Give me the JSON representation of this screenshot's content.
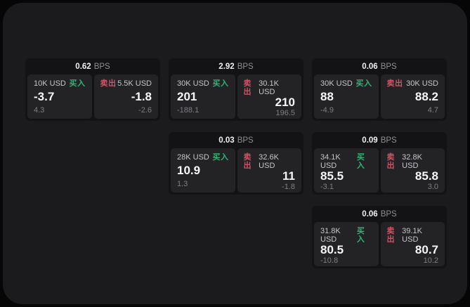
{
  "labels": {
    "bps_suffix": "BPS",
    "buy": "买入",
    "sell": "卖出"
  },
  "colors": {
    "buy_accent": "#30b375",
    "sell_accent": "#d05364",
    "panel_background": "#1b1b1d",
    "card_background": "#131315",
    "tile_background": "#232326"
  },
  "cards": [
    {
      "bps": "0.62",
      "buy": {
        "amount": "10K USD",
        "value": "-3.7",
        "sub": "4.3"
      },
      "sell": {
        "amount": "5.5K USD",
        "value": "-1.8",
        "sub": "-2.6"
      }
    },
    {
      "bps": "2.92",
      "buy": {
        "amount": "30K USD",
        "value": "201",
        "sub": "-188.1"
      },
      "sell": {
        "amount": "30.1K USD",
        "value": "210",
        "sub": "196.5"
      }
    },
    {
      "bps": "0.06",
      "buy": {
        "amount": "30K USD",
        "value": "88",
        "sub": "-4.9"
      },
      "sell": {
        "amount": "30K USD",
        "value": "88.2",
        "sub": "4.7"
      }
    },
    {
      "bps": "0.03",
      "buy": {
        "amount": "28K USD",
        "value": "10.9",
        "sub": "1.3"
      },
      "sell": {
        "amount": "32.6K USD",
        "value": "11",
        "sub": "-1.8"
      }
    },
    {
      "bps": "0.09",
      "buy": {
        "amount": "34.1K USD",
        "value": "85.5",
        "sub": "-3.1"
      },
      "sell": {
        "amount": "32.8K USD",
        "value": "85.8",
        "sub": "3.0"
      }
    },
    {
      "bps": "0.06",
      "buy": {
        "amount": "31.8K USD",
        "value": "80.5",
        "sub": "-10.8"
      },
      "sell": {
        "amount": "39.1K USD",
        "value": "80.7",
        "sub": "10.2"
      }
    }
  ]
}
